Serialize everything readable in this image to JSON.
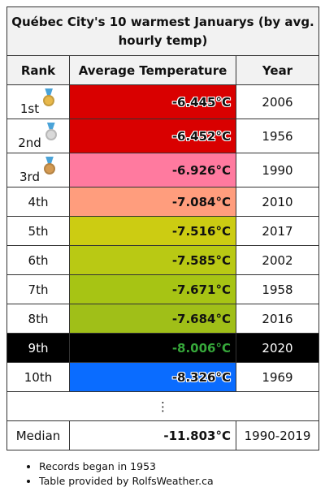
{
  "table": {
    "title": "Québec City's 10 warmest Januarys (by avg. hourly temp)",
    "headers": {
      "rank": "Rank",
      "temp": "Average Temperature",
      "year": "Year"
    },
    "rows": [
      {
        "rank": "1st",
        "temp": "-6.445°C",
        "year": "2006",
        "color": "#d90000",
        "medal": "gold-medal-icon",
        "medal_color": "#e8b84a"
      },
      {
        "rank": "2nd",
        "temp": "-6.452°C",
        "year": "1956",
        "color": "#d90000",
        "medal": "silver-medal-icon",
        "medal_color": "#d9d9d9"
      },
      {
        "rank": "3rd",
        "temp": "-6.926°C",
        "year": "1990",
        "color": "#ff7a9f",
        "medal": "bronze-medal-icon",
        "medal_color": "#d49a52"
      },
      {
        "rank": "4th",
        "temp": "-7.084°C",
        "year": "2010",
        "color": "#ff9d7d"
      },
      {
        "rank": "5th",
        "temp": "-7.516°C",
        "year": "2017",
        "color": "#cccc12"
      },
      {
        "rank": "6th",
        "temp": "-7.585°C",
        "year": "2002",
        "color": "#b9c914"
      },
      {
        "rank": "7th",
        "temp": "-7.671°C",
        "year": "1958",
        "color": "#a7c414"
      },
      {
        "rank": "8th",
        "temp": "-7.684°C",
        "year": "2016",
        "color": "#a0bf18"
      },
      {
        "rank": "9th",
        "temp": "-8.006°C",
        "year": "2020",
        "color": "#000000",
        "highlight": true
      },
      {
        "rank": "10th",
        "temp": "-8.326°C",
        "year": "1969",
        "color": "#0a6cff"
      }
    ],
    "ellipsis": "⋮",
    "median": {
      "label": "Median",
      "temp": "-11.803°C",
      "years": "1990-2019"
    }
  },
  "notes": [
    "Records began in 1953",
    "Table provided by RolfsWeather.ca"
  ]
}
